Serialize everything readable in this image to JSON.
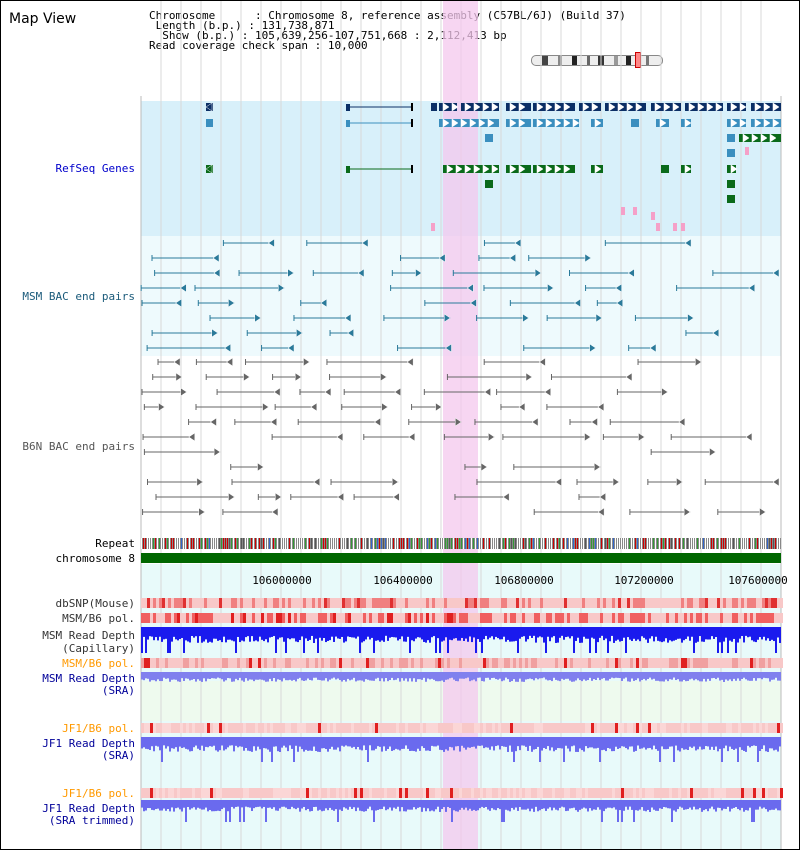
{
  "title": "Map View",
  "info": [
    {
      "label": "Chromosome      ",
      "value": "Chromosome 8, reference assembly (C57BL/6J) (Build 37)"
    },
    {
      "label": " Length (b.p.) ",
      "value": "131,738,871"
    },
    {
      "label": "  Show (b.p.) ",
      "value": "105,639,256-107,751,668 : 2,112,413 bp"
    },
    {
      "label": "Read coverage check span ",
      "value": "10,000"
    }
  ],
  "tracks": {
    "refseq": "RefSeq Genes",
    "msm_bac": "MSM BAC end pairs",
    "b6n_bac": "B6N BAC end pairs",
    "repeat": "Repeat",
    "chromosome": "chromosome 8",
    "dbsnp": "dbSNP(Mouse)",
    "msm_pol1": "MSM/B6 pol.",
    "msm_depth_cap_1": "MSM Read Depth",
    "msm_depth_cap_2": "(Capillary)",
    "msm_pol2": "MSM/B6 pol.",
    "msm_depth_sra_1": "MSM Read Depth",
    "msm_depth_sra_2": "(SRA)",
    "jf1_pol1": "JF1/B6 pol.",
    "jf1_depth_sra_1": "JF1 Read Depth",
    "jf1_depth_sra_2": "(SRA)",
    "jf1_pol2": "JF1/B6 pol.",
    "jf1_depth_trim_1": "JF1 Read Depth",
    "jf1_depth_trim_2": "(SRA trimmed)"
  },
  "axis_ticks": [
    "106000000",
    "106400000",
    "106800000",
    "107200000",
    "107600000"
  ],
  "colors": {
    "refseq_bg": "#d8f0fa",
    "refseq_label": "#0000cc",
    "msm_bac": "#2a7a9a",
    "b6n_bac": "#666666",
    "highlight": "#f8d8f4",
    "chrom_bar": "#006600",
    "sra_label": "#000099",
    "pol_label": "#ff9900",
    "depth_blue": "#2a2ae8",
    "depth_light": "#8888ee"
  }
}
